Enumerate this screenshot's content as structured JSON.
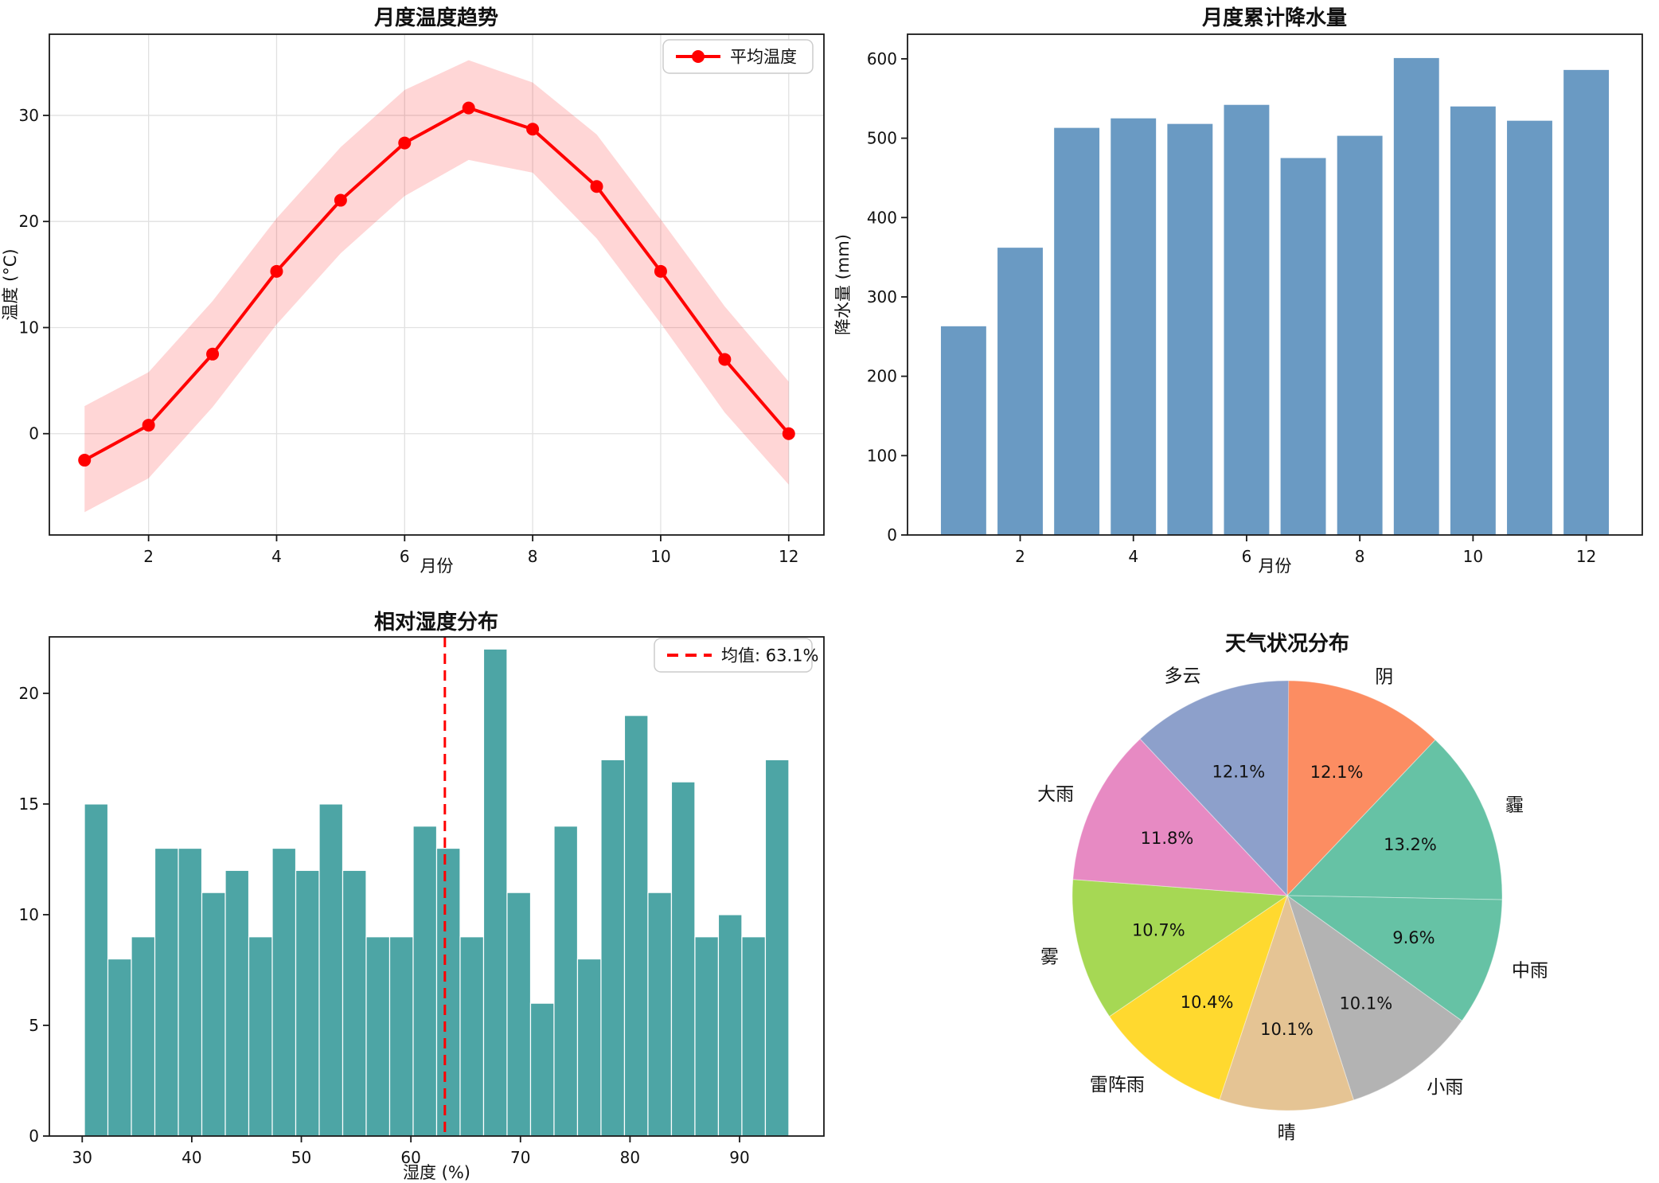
{
  "figure": {
    "background": "#ffffff"
  },
  "chart_data": [
    {
      "id": "monthly-temperature",
      "type": "line",
      "title": "月度温度趋势",
      "xlabel": "月份",
      "ylabel": "温度 (°C)",
      "legend": {
        "label": "平均温度",
        "position": "upper right"
      },
      "x": [
        1,
        2,
        3,
        4,
        5,
        6,
        7,
        8,
        9,
        10,
        11,
        12
      ],
      "series": [
        {
          "name": "平均温度",
          "values": [
            -2.5,
            0.8,
            7.5,
            15.3,
            22.0,
            27.4,
            30.7,
            28.7,
            23.3,
            15.3,
            7.0,
            0.0
          ],
          "color": "#ff0000"
        }
      ],
      "band": {
        "lower": [
          -7.4,
          -4.2,
          2.5,
          10.3,
          17.0,
          22.4,
          25.8,
          24.6,
          18.4,
          10.4,
          2.0,
          -4.8
        ],
        "upper": [
          2.6,
          5.8,
          12.5,
          20.3,
          27.0,
          32.4,
          35.2,
          33.1,
          28.2,
          20.2,
          12.0,
          4.9
        ],
        "fill": "rgba(255,0,0,0.16)"
      },
      "xticks": [
        2,
        4,
        6,
        8,
        10,
        12
      ],
      "yticks": [
        0,
        10,
        20,
        30
      ],
      "xlim": [
        0.45,
        12.55
      ],
      "ylim": [
        -9.55,
        37.65
      ],
      "grid": true,
      "grid_color": "#e1e1e1"
    },
    {
      "id": "monthly-precipitation",
      "type": "bar",
      "title": "月度累计降水量",
      "xlabel": "月份",
      "ylabel": "降水量 (mm)",
      "categories": [
        1,
        2,
        3,
        4,
        5,
        6,
        7,
        8,
        9,
        10,
        11,
        12
      ],
      "values": [
        263,
        362,
        513,
        525,
        518,
        542,
        475,
        503,
        601,
        540,
        522,
        586
      ],
      "bar_color": "#6a9ac3",
      "bar_width": 0.8,
      "xticks": [
        2,
        4,
        6,
        8,
        10,
        12
      ],
      "yticks": [
        0,
        100,
        200,
        300,
        400,
        500,
        600
      ],
      "xlim": [
        0.01,
        12.99
      ],
      "ylim": [
        0,
        631
      ],
      "grid": false
    },
    {
      "id": "humidity-distribution",
      "type": "histogram",
      "title": "相对湿度分布",
      "xlabel": "湿度 (%)",
      "bin_start": 30.2,
      "bin_width": 2.1433,
      "counts": [
        15,
        8,
        9,
        13,
        13,
        11,
        12,
        9,
        13,
        12,
        15,
        12,
        9,
        9,
        14,
        13,
        9,
        22,
        11,
        6,
        14,
        8,
        17,
        19,
        11,
        16,
        9,
        10,
        9,
        17
      ],
      "total_count": 365,
      "bar_color": "#4da5a5",
      "bar_edge_color": "#ffffff",
      "mean": {
        "value": 63.1,
        "legend_label": "均值: 63.1%",
        "color": "#ff0000",
        "style": "dashed"
      },
      "xticks": [
        30,
        40,
        50,
        60,
        70,
        80,
        90
      ],
      "yticks": [
        0,
        5,
        10,
        15,
        20
      ],
      "xlim": [
        27.0,
        97.7
      ],
      "ylim": [
        0,
        22.55
      ],
      "grid": false
    },
    {
      "id": "weather-conditions",
      "type": "pie",
      "title": "天气状况分布",
      "start_angle_deg": 0,
      "direction": "clockwise",
      "slices": [
        {
          "label": "阴",
          "pct": 12.1,
          "color": "#fc8d62"
        },
        {
          "label": "霾",
          "pct": 13.2,
          "color": "#66c2a5"
        },
        {
          "label": "中雨",
          "pct": 9.6,
          "color": "#66c2a5"
        },
        {
          "label": "小雨",
          "pct": 10.1,
          "color": "#b3b3b3"
        },
        {
          "label": "晴",
          "pct": 10.1,
          "color": "#e5c494"
        },
        {
          "label": "雷阵雨",
          "pct": 10.4,
          "color": "#ffd92f"
        },
        {
          "label": "雾",
          "pct": 10.7,
          "color": "#a6d854"
        },
        {
          "label": "大雨",
          "pct": 11.8,
          "color": "#e78ac3"
        },
        {
          "label": "多云",
          "pct": 12.1,
          "color": "#8da0cb"
        }
      ]
    }
  ]
}
